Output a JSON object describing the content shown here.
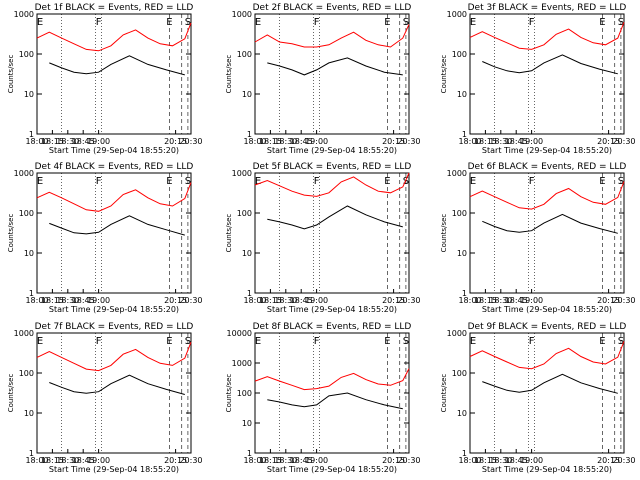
{
  "figure": {
    "x_tick_labels": [
      "18:00",
      "18:15",
      "18:30",
      "18:45",
      "19:00",
      "20:15",
      "20:30"
    ],
    "x_label": "Start Time (29-Sep-04 18:55:20)",
    "y_label": "Counts/sec",
    "y_tick_labels": [
      "1",
      "10",
      "100",
      "1000"
    ],
    "colors": {
      "events": "#000000",
      "lld": "#ff0000",
      "axes": "#000000"
    },
    "marker_letters": [
      "E",
      "F",
      "E",
      "S"
    ]
  },
  "chart_data": [
    {
      "type": "line",
      "title": "Det 1f BLACK = Events, RED = LLD",
      "xlabel": "Start Time (29-Sep-04 18:55:20)",
      "ylabel": "Counts/sec",
      "yscale": "log",
      "ylim": [
        1,
        1000
      ],
      "series": [
        {
          "name": "Events",
          "color": "#000000",
          "x": [
            18.2,
            18.4,
            18.6,
            18.8,
            19.0,
            19.2,
            19.5,
            19.8,
            20.1,
            20.4
          ],
          "y": [
            60,
            45,
            35,
            32,
            35,
            55,
            90,
            55,
            40,
            30
          ]
        },
        {
          "name": "LLD",
          "color": "#ff0000",
          "x": [
            18.0,
            18.2,
            18.4,
            18.6,
            18.8,
            19.0,
            19.2,
            19.4,
            19.6,
            19.8,
            20.0,
            20.2,
            20.4,
            20.5
          ],
          "y": [
            250,
            350,
            250,
            180,
            130,
            120,
            160,
            300,
            400,
            250,
            180,
            160,
            240,
            600
          ]
        }
      ]
    },
    {
      "type": "line",
      "title": "Det 2f BLACK = Events, RED = LLD",
      "xlabel": "Start Time (29-Sep-04 18:55:20)",
      "ylabel": "Counts/sec",
      "yscale": "log",
      "ylim": [
        1,
        1000
      ],
      "series": [
        {
          "name": "Events",
          "color": "#000000",
          "x": [
            18.2,
            18.4,
            18.6,
            18.8,
            19.0,
            19.2,
            19.5,
            19.8,
            20.1,
            20.4
          ],
          "y": [
            60,
            50,
            40,
            30,
            40,
            60,
            80,
            50,
            35,
            30
          ]
        },
        {
          "name": "LLD",
          "color": "#ff0000",
          "x": [
            18.0,
            18.2,
            18.4,
            18.6,
            18.8,
            19.0,
            19.2,
            19.4,
            19.6,
            19.8,
            20.0,
            20.2,
            20.4,
            20.5
          ],
          "y": [
            200,
            300,
            200,
            180,
            150,
            150,
            170,
            250,
            350,
            220,
            170,
            150,
            250,
            550
          ]
        }
      ]
    },
    {
      "type": "line",
      "title": "Det 3f BLACK = Events, RED = LLD",
      "xlabel": "Start Time (29-Sep-04 18:55:20)",
      "ylabel": "Counts/sec",
      "yscale": "log",
      "ylim": [
        1,
        1000
      ],
      "series": [
        {
          "name": "Events",
          "color": "#000000",
          "x": [
            18.2,
            18.4,
            18.6,
            18.8,
            19.0,
            19.2,
            19.5,
            19.8,
            20.1,
            20.4
          ],
          "y": [
            65,
            48,
            38,
            34,
            38,
            60,
            95,
            58,
            42,
            32
          ]
        },
        {
          "name": "LLD",
          "color": "#ff0000",
          "x": [
            18.0,
            18.2,
            18.4,
            18.6,
            18.8,
            19.0,
            19.2,
            19.4,
            19.6,
            19.8,
            20.0,
            20.2,
            20.4,
            20.5
          ],
          "y": [
            260,
            360,
            260,
            190,
            140,
            130,
            170,
            310,
            420,
            260,
            190,
            170,
            250,
            620
          ]
        }
      ]
    },
    {
      "type": "line",
      "title": "Det 4f BLACK = Events, RED = LLD",
      "xlabel": "Start Time (29-Sep-04 18:55:20)",
      "ylabel": "Counts/sec",
      "yscale": "log",
      "ylim": [
        1,
        1000
      ],
      "series": [
        {
          "name": "Events",
          "color": "#000000",
          "x": [
            18.2,
            18.4,
            18.6,
            18.8,
            19.0,
            19.2,
            19.5,
            19.8,
            20.1,
            20.4
          ],
          "y": [
            55,
            42,
            32,
            30,
            33,
            52,
            85,
            52,
            38,
            28
          ]
        },
        {
          "name": "LLD",
          "color": "#ff0000",
          "x": [
            18.0,
            18.2,
            18.4,
            18.6,
            18.8,
            19.0,
            19.2,
            19.4,
            19.6,
            19.8,
            20.0,
            20.2,
            20.4,
            20.5
          ],
          "y": [
            240,
            330,
            240,
            170,
            120,
            110,
            150,
            290,
            380,
            240,
            170,
            150,
            230,
            580
          ]
        }
      ]
    },
    {
      "type": "line",
      "title": "Det 5f BLACK = Events, RED = LLD",
      "xlabel": "Start Time (29-Sep-04 18:55:20)",
      "ylabel": "Counts/sec",
      "yscale": "log",
      "ylim": [
        1,
        1000
      ],
      "series": [
        {
          "name": "Events",
          "color": "#000000",
          "x": [
            18.2,
            18.4,
            18.6,
            18.8,
            19.0,
            19.2,
            19.5,
            19.8,
            20.1,
            20.4
          ],
          "y": [
            70,
            60,
            50,
            40,
            50,
            80,
            150,
            90,
            60,
            45
          ]
        },
        {
          "name": "LLD",
          "color": "#ff0000",
          "x": [
            18.0,
            18.2,
            18.4,
            18.6,
            18.8,
            19.0,
            19.2,
            19.4,
            19.6,
            19.8,
            20.0,
            20.2,
            20.4,
            20.5
          ],
          "y": [
            500,
            650,
            480,
            350,
            280,
            260,
            320,
            600,
            800,
            500,
            350,
            320,
            450,
            1000
          ]
        }
      ]
    },
    {
      "type": "line",
      "title": "Det 6f BLACK = Events, RED = LLD",
      "xlabel": "Start Time (29-Sep-04 18:55:20)",
      "ylabel": "Counts/sec",
      "yscale": "log",
      "ylim": [
        1,
        1000
      ],
      "series": [
        {
          "name": "Events",
          "color": "#000000",
          "x": [
            18.2,
            18.4,
            18.6,
            18.8,
            19.0,
            19.2,
            19.5,
            19.8,
            20.1,
            20.4
          ],
          "y": [
            62,
            46,
            36,
            33,
            36,
            56,
            92,
            56,
            41,
            31
          ]
        },
        {
          "name": "LLD",
          "color": "#ff0000",
          "x": [
            18.0,
            18.2,
            18.4,
            18.6,
            18.8,
            19.0,
            19.2,
            19.4,
            19.6,
            19.8,
            20.0,
            20.2,
            20.4,
            20.5
          ],
          "y": [
            255,
            355,
            255,
            185,
            135,
            125,
            165,
            305,
            410,
            255,
            185,
            165,
            245,
            610
          ]
        }
      ]
    },
    {
      "type": "line",
      "title": "Det 7f BLACK = Events, RED = LLD",
      "xlabel": "Start Time (29-Sep-04 18:55:20)",
      "ylabel": "Counts/sec",
      "yscale": "log",
      "ylim": [
        1,
        1000
      ],
      "series": [
        {
          "name": "Events",
          "color": "#000000",
          "x": [
            18.2,
            18.4,
            18.6,
            18.8,
            19.0,
            19.2,
            19.5,
            19.8,
            20.1,
            20.4
          ],
          "y": [
            58,
            44,
            34,
            31,
            34,
            54,
            88,
            54,
            39,
            29
          ]
        },
        {
          "name": "LLD",
          "color": "#ff0000",
          "x": [
            18.0,
            18.2,
            18.4,
            18.6,
            18.8,
            19.0,
            19.2,
            19.4,
            19.6,
            19.8,
            20.0,
            20.2,
            20.4,
            20.5
          ],
          "y": [
            245,
            345,
            245,
            175,
            125,
            115,
            155,
            295,
            390,
            245,
            175,
            155,
            235,
            590
          ]
        }
      ]
    },
    {
      "type": "line",
      "title": "Det 8f BLACK = Events, RED = LLD",
      "xlabel": "Start Time (29-Sep-04 18:55:20)",
      "ylabel": "Counts/sec",
      "yscale": "log",
      "ylim": [
        1,
        10000
      ],
      "series": [
        {
          "name": "Events",
          "color": "#000000",
          "x": [
            18.2,
            18.4,
            18.6,
            18.8,
            19.0,
            19.2,
            19.5,
            19.8,
            20.1,
            20.4
          ],
          "y": [
            60,
            50,
            40,
            35,
            40,
            80,
            100,
            60,
            40,
            30
          ]
        },
        {
          "name": "LLD",
          "color": "#ff0000",
          "x": [
            18.0,
            18.2,
            18.4,
            18.6,
            18.8,
            19.0,
            19.2,
            19.4,
            19.6,
            19.8,
            20.0,
            20.2,
            20.4,
            20.5
          ],
          "y": [
            250,
            350,
            250,
            180,
            130,
            140,
            170,
            330,
            450,
            280,
            200,
            180,
            260,
            650
          ]
        }
      ]
    },
    {
      "type": "line",
      "title": "Det 9f BLACK = Events, RED = LLD",
      "xlabel": "Start Time (29-Sep-04 18:55:20)",
      "ylabel": "Counts/sec",
      "yscale": "log",
      "ylim": [
        1,
        1000
      ],
      "series": [
        {
          "name": "Events",
          "color": "#000000",
          "x": [
            18.2,
            18.4,
            18.6,
            18.8,
            19.0,
            19.2,
            19.5,
            19.8,
            20.1,
            20.4
          ],
          "y": [
            61,
            47,
            37,
            33,
            37,
            57,
            93,
            57,
            41,
            31
          ]
        },
        {
          "name": "LLD",
          "color": "#ff0000",
          "x": [
            18.0,
            18.2,
            18.4,
            18.6,
            18.8,
            19.0,
            19.2,
            19.4,
            19.6,
            19.8,
            20.0,
            20.2,
            20.4,
            20.5
          ],
          "y": [
            258,
            358,
            258,
            188,
            138,
            128,
            168,
            308,
            415,
            258,
            188,
            168,
            248,
            615
          ]
        }
      ]
    }
  ]
}
